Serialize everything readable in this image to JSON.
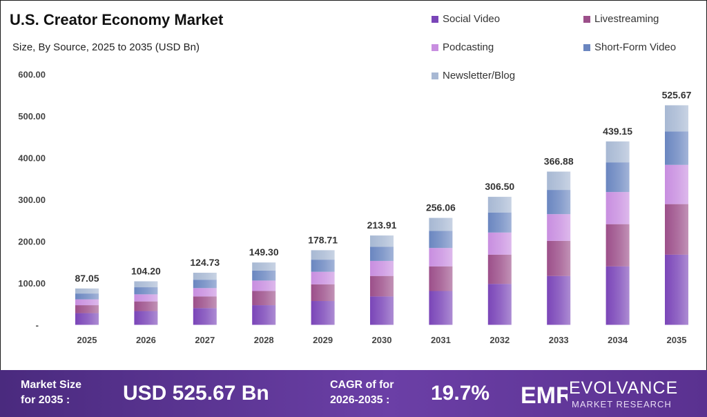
{
  "title": "U.S. Creator Economy Market",
  "subtitle": "Size, By Source, 2025 to 2035 (USD Bn)",
  "colors": {
    "social_video": "#7a45b8",
    "livestreaming": "#9c4f8a",
    "podcasting": "#c88ee0",
    "short_form_video": "#6a86c0",
    "newsletter_blog": "#a7b8d3"
  },
  "chart_data": {
    "type": "bar",
    "stacked": true,
    "categories": [
      "2025",
      "2026",
      "2027",
      "2028",
      "2029",
      "2030",
      "2031",
      "2032",
      "2033",
      "2034",
      "2035"
    ],
    "totals": [
      87.05,
      104.2,
      124.73,
      149.3,
      178.71,
      213.91,
      256.06,
      306.5,
      366.88,
      439.15,
      525.67
    ],
    "total_labels": [
      "87.05",
      "104.20",
      "124.73",
      "149.30",
      "178.71",
      "213.91",
      "256.06",
      "306.50",
      "366.88",
      "439.15",
      "525.67"
    ],
    "series": [
      {
        "name": "Social Video",
        "values": [
          28,
          33,
          40,
          47,
          57,
          68,
          81,
          98,
          117,
          140,
          168
        ]
      },
      {
        "name": "Livestreaming",
        "values": [
          19,
          23,
          28,
          34,
          40,
          49,
          59,
          70,
          84,
          101,
          121
        ]
      },
      {
        "name": "Podcasting",
        "values": [
          14,
          17,
          20,
          25,
          30,
          36,
          44,
          53,
          64,
          77,
          94
        ]
      },
      {
        "name": "Short-Form Video",
        "values": [
          14,
          17,
          20,
          24,
          29,
          34,
          41,
          48,
          58,
          71,
          80
        ]
      },
      {
        "name": "Newsletter/Blog",
        "values": [
          12.05,
          14.2,
          16.73,
          19.3,
          22.71,
          26.91,
          31.06,
          37.5,
          43.88,
          50.15,
          62.67
        ]
      }
    ],
    "y_ticks": [
      "-",
      "100.00",
      "200.00",
      "300.00",
      "400.00",
      "500.00",
      "600.00"
    ],
    "ylim": [
      0,
      600
    ],
    "legend_position": "top-right",
    "grid": false
  },
  "footer": {
    "market_size_label_line1": "Market Size",
    "market_size_label_line2": "for 2035 :",
    "market_size_value": "USD 525.67 Bn",
    "cagr_label_line1": "CAGR of for",
    "cagr_label_line2": "2026-2035 :",
    "cagr_value": "19.7%"
  },
  "brand": {
    "logo_letters": "EMR",
    "name": "EVOLVANCE",
    "tagline": "MARKET RESEARCH"
  }
}
